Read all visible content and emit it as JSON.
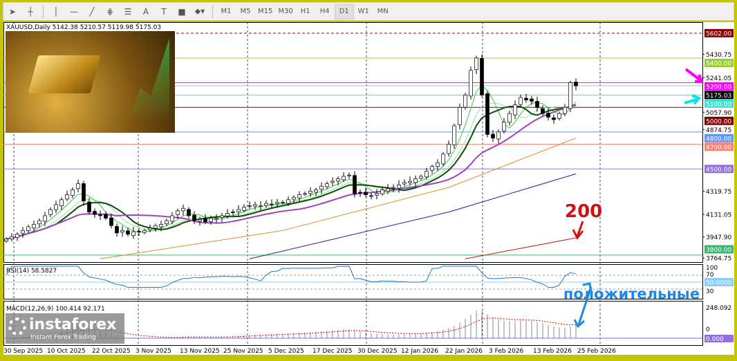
{
  "toolbar": {
    "tools": [
      "cursor",
      "crosshair",
      "vertical-line",
      "horizontal-line",
      "trendline",
      "fibonacci",
      "fibo-fan",
      "text",
      "label",
      "rectangle",
      "arrows"
    ],
    "text_tool": "A",
    "timeframes": [
      "M1",
      "M5",
      "M15",
      "M30",
      "H1",
      "H4",
      "D1",
      "W1",
      "MN"
    ],
    "active_timeframe": "D1"
  },
  "symbol_header": "XAUUSD,Daily  5142.38 5210.57 5119.98 5175.03",
  "price_axis": {
    "ticks": [
      "5430.75",
      "5241.05",
      "5057.90",
      "4874.75",
      "4319.75",
      "4131.05",
      "3947.90",
      "3764.75"
    ],
    "current": "5175.03",
    "max": "5602.00"
  },
  "levels": [
    {
      "price": 5602,
      "label": "5602.00",
      "color": "#8b0000",
      "dashed": true
    },
    {
      "price": 5400,
      "label": "5400.00",
      "color": "#9acd32"
    },
    {
      "price": 5200,
      "label": "5200.00",
      "color": "#ff00ff"
    },
    {
      "price": 5100,
      "label": "5100.00",
      "color": "#40e0d0"
    },
    {
      "price": 5000,
      "label": "5000.00",
      "color": "#800000"
    },
    {
      "price": 4800,
      "label": "4800.00",
      "color": "#6495ed"
    },
    {
      "price": 4700,
      "label": "4700.00",
      "color": "#fa8072"
    },
    {
      "price": 4500,
      "label": "4500.00",
      "color": "#9370db"
    },
    {
      "price": 3800,
      "label": "3800.00",
      "color": "#3cb371"
    }
  ],
  "rsi": {
    "label": "RSI(14) 58.5827",
    "levels": [
      "100",
      "70",
      "30"
    ],
    "mid_label": "50.0000"
  },
  "macd": {
    "label": "MACD(12,26,9) 100.414 92.171",
    "top": "248.092",
    "zero": "0",
    "zero_label": "0.000"
  },
  "dates": [
    "30 Sep 2025",
    "10 Oct 2025",
    "22 Oct 2025",
    "3 Nov 2025",
    "13 Nov 2025",
    "25 Nov 2025",
    "5 Dec 2025",
    "17 Dec 2025",
    "30 Dec 2025",
    "12 Jan 2026",
    "22 Jan 2026",
    "3 Feb 2026",
    "13 Feb 2026",
    "25 Feb 2026"
  ],
  "annotations": {
    "ma_label": "200",
    "rsi_note": "положительные"
  },
  "logo": {
    "name": "instaforex",
    "tagline": "Instant Forex Trading"
  },
  "chart_data": {
    "type": "candlestick",
    "symbol": "XAUUSD",
    "timeframe": "Daily",
    "closes": [
      3930,
      3950,
      3970,
      4000,
      4030,
      4050,
      4080,
      4120,
      4170,
      4210,
      4250,
      4290,
      4330,
      4380,
      4240,
      4150,
      4130,
      4120,
      4100,
      4040,
      3980,
      4000,
      3970,
      3990,
      3990,
      4000,
      4020,
      4040,
      4050,
      4080,
      4120,
      4160,
      4180,
      4120,
      4080,
      4090,
      4070,
      4100,
      4100,
      4120,
      4140,
      4150,
      4170,
      4190,
      4200,
      4210,
      4200,
      4220,
      4210,
      4230,
      4230,
      4250,
      4270,
      4290,
      4300,
      4320,
      4330,
      4360,
      4380,
      4400,
      4420,
      4440,
      4450,
      4300,
      4310,
      4290,
      4280,
      4300,
      4330,
      4340,
      4350,
      4370,
      4390,
      4400,
      4420,
      4440,
      4480,
      4520,
      4550,
      4620,
      4700,
      4850,
      5000,
      5100,
      5300,
      5400,
      5100,
      4780,
      4750,
      4800,
      4880,
      4950,
      5020,
      5080,
      5060,
      5050,
      5000,
      4950,
      4920,
      4900,
      4950,
      5000,
      5200,
      5175
    ],
    "long_mas": [
      {
        "name": "MA50",
        "color": "#e08a20",
        "points": [
          [
            17,
            3770
          ],
          [
            50,
            4000
          ],
          [
            80,
            4350
          ],
          [
            103,
            4750
          ]
        ]
      },
      {
        "name": "MA100",
        "color": "#1a1aa0",
        "points": [
          [
            44,
            3770
          ],
          [
            80,
            4150
          ],
          [
            103,
            4460
          ]
        ]
      },
      {
        "name": "MA200",
        "color": "#c01818",
        "points": [
          [
            83,
            3770
          ],
          [
            103,
            3940
          ]
        ]
      }
    ],
    "ylim": [
      3760,
      5620
    ]
  }
}
